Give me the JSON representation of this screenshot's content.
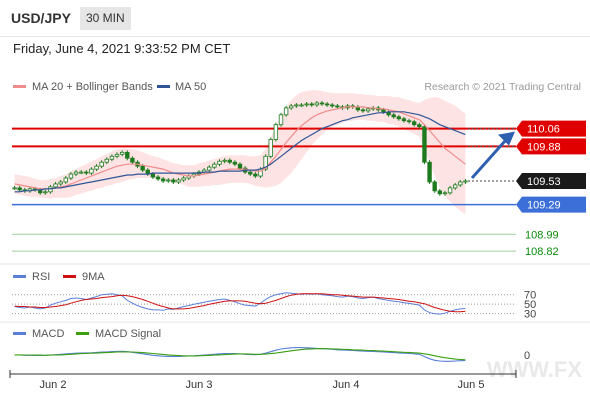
{
  "symbol": "USD/JPY",
  "timeframe": "30 MIN",
  "datetime": "Friday, June 4, 2021 9:33:52 PM CET",
  "legend_ma20": "MA 20 + Bollinger Bands",
  "legend_ma50": "MA 50",
  "copyright": "Research © 2021 Trading Central",
  "rsi_legend": [
    "RSI",
    "9MA"
  ],
  "macd_legend": [
    "MACD",
    "MACD Signal"
  ],
  "watermark": "WWW.FX",
  "colors": {
    "ma20": "#f28b8b",
    "ma50": "#2f5597",
    "resistance": "#e00000",
    "support_blue": "#3d6fd8",
    "support_green": "#0a8a0a",
    "last": "#1a1a1a",
    "band": "#fde0e0",
    "rsi": "#5b7fd6",
    "rsi_ma": "#d01010",
    "macd": "#5b7fd6",
    "macd_signal": "#3aa010",
    "candle": "#1e7a1e"
  },
  "chart_data": [
    {
      "type": "candlestick",
      "title": "",
      "x_ticks": [
        "Jun 2",
        "Jun 3",
        "Jun 4",
        "Jun 5"
      ],
      "ylim": [
        108.75,
        110.35
      ],
      "levels": [
        {
          "value": 110.06,
          "label": "110.06",
          "kind": "resistance"
        },
        {
          "value": 109.88,
          "label": "109.88",
          "kind": "resistance"
        },
        {
          "value": 109.53,
          "label": "109.53",
          "kind": "last"
        },
        {
          "value": 109.29,
          "label": "109.29",
          "kind": "support_blue"
        },
        {
          "value": 108.99,
          "label": "108.99",
          "kind": "support_green"
        },
        {
          "value": 108.82,
          "label": "108.82",
          "kind": "support_green"
        }
      ],
      "close": [
        109.46,
        109.44,
        109.43,
        109.45,
        109.44,
        109.41,
        109.42,
        109.47,
        109.5,
        109.52,
        109.56,
        109.6,
        109.62,
        109.62,
        109.61,
        109.65,
        109.68,
        109.72,
        109.75,
        109.78,
        109.8,
        109.82,
        109.76,
        109.72,
        109.68,
        109.64,
        109.6,
        109.57,
        109.55,
        109.53,
        109.54,
        109.52,
        109.54,
        109.56,
        109.58,
        109.6,
        109.62,
        109.64,
        109.67,
        109.7,
        109.73,
        109.74,
        109.72,
        109.7,
        109.66,
        109.62,
        109.6,
        109.58,
        109.65,
        109.78,
        109.95,
        110.1,
        110.2,
        110.27,
        110.29,
        110.3,
        110.3,
        110.31,
        110.3,
        110.32,
        110.31,
        110.3,
        110.29,
        110.28,
        110.27,
        110.29,
        110.28,
        110.25,
        110.24,
        110.26,
        110.27,
        110.25,
        110.23,
        110.2,
        110.18,
        110.16,
        110.14,
        110.13,
        110.1,
        110.08,
        109.72,
        109.52,
        109.43,
        109.4,
        109.41,
        109.46,
        109.49,
        109.52,
        109.53
      ],
      "ma20": [
        109.5,
        109.49,
        109.48,
        109.47,
        109.46,
        109.45,
        109.45,
        109.45,
        109.46,
        109.47,
        109.48,
        109.5,
        109.52,
        109.54,
        109.56,
        109.58,
        109.6,
        109.62,
        109.64,
        109.66,
        109.68,
        109.69,
        109.7,
        109.7,
        109.7,
        109.69,
        109.68,
        109.67,
        109.66,
        109.65,
        109.63,
        109.61,
        109.6,
        109.59,
        109.58,
        109.58,
        109.59,
        109.6,
        109.61,
        109.62,
        109.63,
        109.64,
        109.65,
        109.65,
        109.65,
        109.65,
        109.64,
        109.63,
        109.63,
        109.66,
        109.72,
        109.78,
        109.85,
        109.92,
        109.98,
        110.04,
        110.09,
        110.13,
        110.17,
        110.2,
        110.22,
        110.24,
        110.25,
        110.26,
        110.27,
        110.28,
        110.28,
        110.28,
        110.28,
        110.27,
        110.27,
        110.26,
        110.26,
        110.25,
        110.24,
        110.23,
        110.21,
        110.19,
        110.17,
        110.15,
        110.1,
        110.04,
        109.98,
        109.92,
        109.86,
        109.82,
        109.78,
        109.74,
        109.7
      ],
      "ma50": [
        109.42,
        109.42,
        109.43,
        109.43,
        109.44,
        109.44,
        109.45,
        109.45,
        109.46,
        109.46,
        109.47,
        109.48,
        109.49,
        109.5,
        109.51,
        109.52,
        109.53,
        109.54,
        109.55,
        109.56,
        109.57,
        109.58,
        109.59,
        109.59,
        109.6,
        109.6,
        109.6,
        109.61,
        109.61,
        109.61,
        109.61,
        109.61,
        109.61,
        109.61,
        109.61,
        109.61,
        109.61,
        109.62,
        109.62,
        109.62,
        109.63,
        109.63,
        109.63,
        109.63,
        109.63,
        109.64,
        109.64,
        109.64,
        109.65,
        109.67,
        109.7,
        109.74,
        109.78,
        109.82,
        109.86,
        109.9,
        109.94,
        109.97,
        110.0,
        110.03,
        110.06,
        110.08,
        110.1,
        110.12,
        110.14,
        110.15,
        110.17,
        110.18,
        110.19,
        110.2,
        110.21,
        110.22,
        110.22,
        110.23,
        110.23,
        110.23,
        110.23,
        110.22,
        110.21,
        110.2,
        110.18,
        110.16,
        110.13,
        110.1,
        110.08,
        110.06,
        110.04,
        110.02,
        110.0
      ],
      "band_width": [
        0.1,
        0.1,
        0.1,
        0.1,
        0.09,
        0.09,
        0.09,
        0.1,
        0.1,
        0.11,
        0.12,
        0.13,
        0.13,
        0.14,
        0.14,
        0.15,
        0.15,
        0.16,
        0.16,
        0.17,
        0.17,
        0.17,
        0.16,
        0.15,
        0.14,
        0.13,
        0.12,
        0.11,
        0.11,
        0.1,
        0.1,
        0.1,
        0.1,
        0.1,
        0.11,
        0.11,
        0.12,
        0.12,
        0.13,
        0.13,
        0.14,
        0.14,
        0.14,
        0.14,
        0.14,
        0.14,
        0.14,
        0.15,
        0.16,
        0.2,
        0.25,
        0.3,
        0.34,
        0.36,
        0.37,
        0.36,
        0.34,
        0.31,
        0.28,
        0.25,
        0.22,
        0.19,
        0.17,
        0.16,
        0.15,
        0.14,
        0.14,
        0.13,
        0.13,
        0.13,
        0.13,
        0.13,
        0.13,
        0.14,
        0.14,
        0.15,
        0.15,
        0.16,
        0.16,
        0.17,
        0.25,
        0.33,
        0.4,
        0.45,
        0.48,
        0.5,
        0.51,
        0.51,
        0.51
      ],
      "forecast": {
        "from": 109.53,
        "to": 110.06
      }
    },
    {
      "type": "line",
      "title": "",
      "ylim": [
        25,
        80
      ],
      "y_ticks": [
        70,
        50,
        30
      ],
      "series": [
        {
          "name": "RSI",
          "values": [
            45,
            43,
            42,
            44,
            42,
            40,
            42,
            48,
            52,
            55,
            58,
            62,
            63,
            62,
            60,
            63,
            66,
            70,
            71,
            72,
            70,
            68,
            58,
            52,
            47,
            43,
            40,
            38,
            38,
            37,
            40,
            39,
            42,
            45,
            47,
            50,
            52,
            54,
            56,
            58,
            60,
            61,
            58,
            55,
            51,
            48,
            47,
            46,
            52,
            60,
            66,
            70,
            72,
            74,
            73,
            72,
            71,
            72,
            71,
            72,
            70,
            69,
            68,
            66,
            65,
            67,
            66,
            63,
            62,
            64,
            65,
            62,
            60,
            58,
            56,
            55,
            53,
            52,
            50,
            48,
            38,
            32,
            30,
            29,
            31,
            35,
            38,
            40,
            41
          ]
        },
        {
          "name": "9MA",
          "values": [
            46,
            45,
            45,
            44,
            44,
            43,
            43,
            44,
            45,
            47,
            49,
            52,
            55,
            58,
            60,
            61,
            62,
            64,
            65,
            66,
            68,
            69,
            68,
            66,
            63,
            60,
            56,
            52,
            48,
            45,
            42,
            40,
            40,
            40,
            41,
            43,
            45,
            47,
            50,
            52,
            54,
            56,
            57,
            57,
            57,
            56,
            54,
            52,
            51,
            52,
            55,
            58,
            62,
            66,
            69,
            71,
            72,
            72,
            72,
            72,
            72,
            71,
            70,
            70,
            69,
            68,
            67,
            66,
            65,
            65,
            65,
            64,
            63,
            62,
            61,
            60,
            58,
            56,
            55,
            53,
            51,
            47,
            43,
            40,
            37,
            35,
            34,
            34,
            35
          ]
        }
      ]
    },
    {
      "type": "line",
      "title": "",
      "ylim": [
        -1,
        1
      ],
      "y_ticks": [
        0
      ],
      "series": [
        {
          "name": "MACD",
          "values": [
            0.0,
            0.0,
            -0.02,
            -0.02,
            -0.03,
            -0.03,
            -0.02,
            0.0,
            0.02,
            0.05,
            0.07,
            0.1,
            0.12,
            0.13,
            0.14,
            0.15,
            0.17,
            0.19,
            0.21,
            0.23,
            0.24,
            0.25,
            0.22,
            0.18,
            0.13,
            0.08,
            0.03,
            -0.02,
            -0.05,
            -0.08,
            -0.09,
            -0.1,
            -0.09,
            -0.08,
            -0.06,
            -0.05,
            -0.03,
            -0.01,
            0.02,
            0.05,
            0.08,
            0.1,
            0.1,
            0.09,
            0.07,
            0.05,
            0.03,
            0.02,
            0.05,
            0.12,
            0.22,
            0.32,
            0.4,
            0.45,
            0.48,
            0.49,
            0.49,
            0.48,
            0.46,
            0.44,
            0.42,
            0.4,
            0.38,
            0.35,
            0.33,
            0.32,
            0.3,
            0.28,
            0.26,
            0.25,
            0.24,
            0.22,
            0.2,
            0.18,
            0.16,
            0.14,
            0.12,
            0.1,
            0.08,
            0.05,
            -0.1,
            -0.25,
            -0.35,
            -0.4,
            -0.42,
            -0.42,
            -0.4,
            -0.38,
            -0.36
          ]
        },
        {
          "name": "MACD Signal",
          "values": [
            0.01,
            0.01,
            0.0,
            0.0,
            -0.01,
            -0.01,
            -0.02,
            -0.01,
            0.0,
            0.01,
            0.03,
            0.05,
            0.07,
            0.09,
            0.1,
            0.12,
            0.13,
            0.15,
            0.16,
            0.18,
            0.2,
            0.21,
            0.21,
            0.2,
            0.18,
            0.16,
            0.13,
            0.1,
            0.07,
            0.04,
            0.01,
            -0.02,
            -0.04,
            -0.05,
            -0.06,
            -0.06,
            -0.05,
            -0.04,
            -0.03,
            -0.01,
            0.01,
            0.03,
            0.05,
            0.06,
            0.07,
            0.07,
            0.06,
            0.05,
            0.05,
            0.06,
            0.09,
            0.13,
            0.18,
            0.23,
            0.28,
            0.32,
            0.36,
            0.39,
            0.41,
            0.42,
            0.43,
            0.42,
            0.41,
            0.4,
            0.38,
            0.37,
            0.35,
            0.34,
            0.32,
            0.3,
            0.29,
            0.27,
            0.26,
            0.24,
            0.22,
            0.2,
            0.18,
            0.17,
            0.15,
            0.13,
            0.08,
            0.02,
            -0.05,
            -0.12,
            -0.18,
            -0.23,
            -0.27,
            -0.3,
            -0.32
          ]
        }
      ]
    }
  ]
}
